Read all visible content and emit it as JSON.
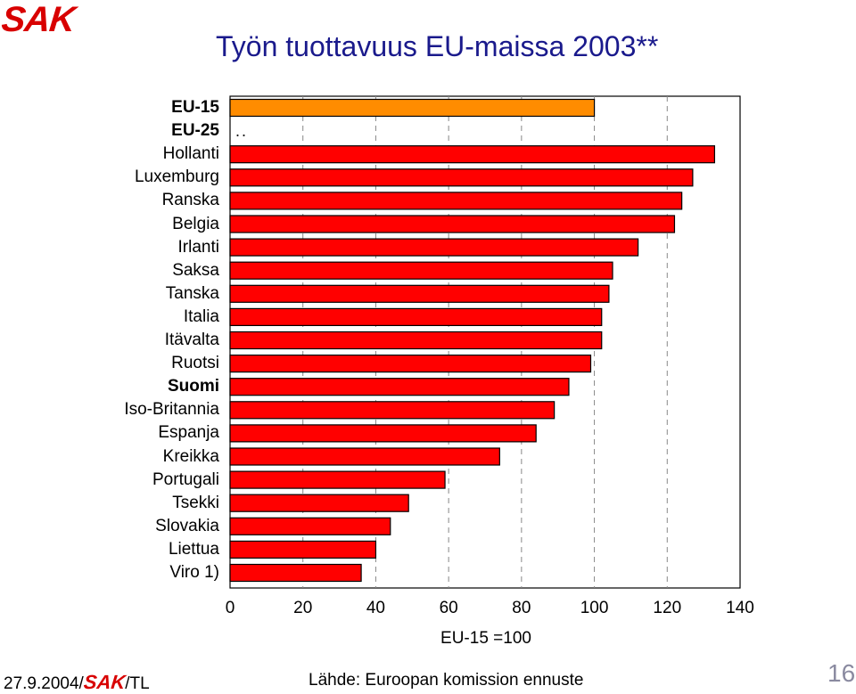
{
  "logo": "SAK",
  "footer": {
    "date_prefix": "27.9.2004/",
    "logo": "SAK",
    "suffix": "/TL",
    "source": "Lähde: Euroopan komission ennuste",
    "page_number": "16"
  },
  "na_marker": "..",
  "colors": {
    "eu15_bar": "#ff8c00",
    "country_bar": "#ff0000",
    "bar_edge": "#000000",
    "title": "#1a1a8c"
  },
  "chart_data": {
    "type": "bar",
    "orientation": "horizontal",
    "title": "Työn tuottavuus EU-maissa 2003**",
    "xlabel": "EU-15 =100",
    "xlim": [
      0,
      140
    ],
    "xticks": [
      "0",
      "20",
      "40",
      "60",
      "80",
      "100",
      "120",
      "140"
    ],
    "grid": "vertical dashed",
    "categories": [
      "EU-15",
      "EU-25",
      "Hollanti",
      "Luxemburg",
      "Ranska",
      "Belgia",
      "Irlanti",
      "Saksa",
      "Tanska",
      "Italia",
      "Itävalta",
      "Ruotsi",
      "Suomi",
      "Iso-Britannia",
      "Espanja",
      "Kreikka",
      "Portugali",
      "Tsekki",
      "Slovakia",
      "Liettua",
      "Viro 1)"
    ],
    "values": [
      100,
      null,
      133,
      127,
      124,
      122,
      112,
      105,
      104,
      102,
      102,
      99,
      93,
      89,
      84,
      74,
      59,
      49,
      44,
      40,
      36
    ],
    "bold_categories": [
      "EU-15",
      "EU-25",
      "Suomi"
    ]
  }
}
